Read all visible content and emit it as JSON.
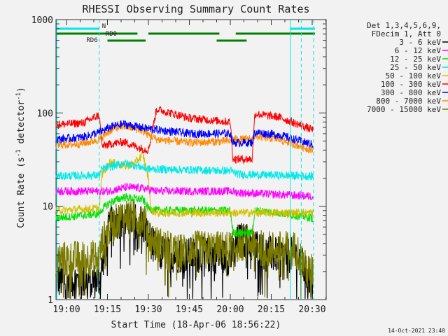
{
  "chart_data": {
    "type": "line",
    "title": "RHESSI Observing Summary Count Rates",
    "xlabel": "Start Time (18-Apr-06 18:56:22)",
    "ylabel_main": "Count Rate (s",
    "ylabel_sup1": "-1",
    "ylabel_mid": " detector",
    "ylabel_sup2": "-1",
    "ylabel_end": ")",
    "y_log": true,
    "ylim": [
      1,
      1000
    ],
    "xlim_minutes": [
      -3.6,
      36.5
    ],
    "x_ticks": [
      {
        "label": "19:00",
        "min": 0
      },
      {
        "label": "19:15",
        "min": 15
      },
      {
        "label": "19:30",
        "min": 30
      },
      {
        "label": "19:45",
        "min": 45
      },
      {
        "label": "20:00",
        "min": 60
      },
      {
        "label": "20:15",
        "min": 75
      },
      {
        "label": "20:30",
        "min": 90
      }
    ],
    "y_ticks": [
      {
        "label": "1",
        "v": 1
      },
      {
        "label": "10",
        "v": 10
      },
      {
        "label": "100",
        "v": 100
      },
      {
        "label": "1000",
        "v": 1000
      }
    ],
    "legend_header": [
      "Det 1,3,4,5,6,9,",
      "FDecim 1, Att 0"
    ],
    "legend_position": "right",
    "series": [
      {
        "name": "3 - 6 keV",
        "color": "#000000",
        "x": [
          -4,
          12,
          13,
          14,
          16,
          18,
          21,
          24,
          27,
          30,
          33,
          39,
          48,
          57,
          60,
          63,
          67,
          72,
          76,
          80,
          84,
          86,
          88,
          90
        ],
        "y": [
          1.6,
          1.6,
          2.2,
          3.5,
          6.5,
          7.0,
          7.0,
          7.0,
          7.0,
          4.8,
          3.3,
          3.0,
          3.0,
          3.0,
          2.7,
          4.3,
          4.3,
          3.3,
          3.0,
          3.0,
          3.0,
          2.5,
          1.8,
          1.6
        ]
      },
      {
        "name": "6 - 12 keV",
        "color": "#ff00ff",
        "x": [
          -4,
          15,
          22,
          29,
          33,
          60,
          63,
          90
        ],
        "y": [
          14.5,
          14.5,
          16.0,
          15.5,
          14.5,
          14.5,
          14.0,
          12.8
        ]
      },
      {
        "name": "12 - 25 keV",
        "color": "#00e000",
        "x": [
          -4,
          12,
          13,
          16,
          21,
          28,
          30,
          33,
          60,
          61,
          68,
          69,
          78,
          90
        ],
        "y": [
          7.5,
          8.3,
          9.3,
          11.0,
          12.5,
          11.8,
          9.5,
          9.0,
          9.0,
          5.2,
          5.2,
          9.0,
          8.5,
          7.5
        ]
      },
      {
        "name": "25 - 50 keV",
        "color": "#00e8e8",
        "x": [
          -4,
          12,
          13,
          17,
          21,
          26,
          30,
          33,
          60,
          63,
          90
        ],
        "y": [
          21.0,
          21.5,
          25.0,
          27.0,
          29.0,
          27.0,
          25.0,
          25.0,
          24.0,
          22.0,
          21.0
        ]
      },
      {
        "name": "50 - 100 keV",
        "color": "#d0c000",
        "x": [
          -4,
          12,
          13,
          16,
          19,
          22,
          25,
          28,
          30,
          31,
          33
        ],
        "y": [
          9.0,
          9.5,
          22.0,
          30.0,
          28.0,
          27.0,
          29.0,
          36.0,
          20.0,
          9.0,
          8.5
        ]
      },
      {
        "name": "100 - 300 keV",
        "color": "#ff0000",
        "x": [
          -4,
          6,
          12,
          13,
          17,
          21,
          27,
          30,
          33,
          45,
          60,
          61,
          68,
          69,
          78,
          90
        ],
        "y": [
          75.0,
          78.0,
          95.0,
          44.0,
          47.0,
          49.0,
          42.0,
          40.0,
          110.0,
          88.0,
          80.0,
          32.0,
          32.0,
          98.0,
          90.0,
          66.0
        ]
      },
      {
        "name": "300 - 800 keV",
        "color": "#0000ff",
        "x": [
          -4,
          6,
          12,
          17,
          21,
          27,
          33,
          45,
          60,
          61,
          68,
          69,
          78,
          90
        ],
        "y": [
          52.0,
          55.0,
          62.0,
          72.0,
          76.0,
          70.0,
          66.0,
          60.0,
          60.0,
          48.0,
          48.0,
          62.0,
          58.0,
          46.0
        ]
      },
      {
        "name": "800 - 7000 keV",
        "color": "#ff8800",
        "x": [
          -4,
          6,
          12,
          17,
          21,
          27,
          33,
          45,
          60,
          61,
          68,
          69,
          78,
          90
        ],
        "y": [
          45.0,
          47.0,
          52.0,
          68.0,
          72.0,
          66.0,
          52.0,
          48.0,
          50.0,
          52.0,
          52.0,
          56.0,
          52.0,
          40.0
        ]
      },
      {
        "name": "7000 - 15000 keV",
        "color": "#7a7a00",
        "x": [
          -4,
          12,
          13,
          16,
          21,
          28,
          31,
          33,
          40,
          48,
          57,
          60,
          63,
          68,
          72,
          78,
          84,
          86,
          88,
          90
        ],
        "y": [
          2.7,
          2.8,
          4.0,
          6.0,
          8.0,
          7.5,
          4.5,
          4.0,
          3.2,
          3.5,
          3.5,
          3.5,
          4.0,
          4.0,
          3.5,
          3.5,
          3.5,
          2.8,
          2.0,
          2.0
        ]
      }
    ],
    "flag_bars": [
      {
        "label": "N",
        "color": "#00e8e8",
        "row": 0,
        "segments": [
          [
            -4,
            12
          ],
          [
            82,
            91
          ]
        ]
      },
      {
        "label": "RD0",
        "color": "#008000",
        "row": 1,
        "segments": [
          [
            -4,
            26
          ],
          [
            30,
            56
          ],
          [
            62,
            91
          ]
        ]
      },
      {
        "label": "RD6",
        "color": "#008000",
        "row": 2,
        "segments": [
          [
            15,
            29
          ],
          [
            55,
            66
          ]
        ]
      }
    ],
    "flag_labels": {
      "N": "N",
      "RD0": "RD0",
      "RD6": "RD6"
    },
    "vlines_solid": [
      -4,
      82
    ],
    "vlines_dashed": [
      12,
      86,
      90.5
    ],
    "timestamp": "14-Oct-2021 23:40"
  }
}
